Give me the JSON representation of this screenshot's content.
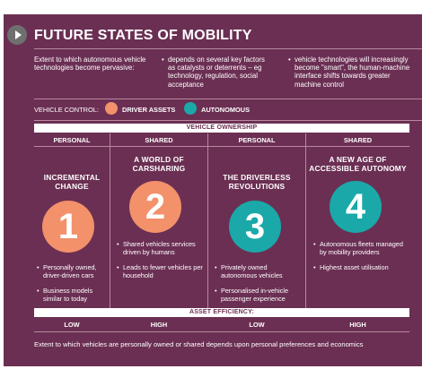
{
  "title": "FUTURE STATES OF MOBILITY",
  "intro": [
    "Extent to which autonomous vehicle technologies become pervasive:",
    "depends on several key factors as catalysts or deterrents – eg technology, regulation, social acceptance",
    "vehicle technologies will increasingly become \"smart\", the human-machine interface shifts towards greater machine control"
  ],
  "legend": {
    "label": "VEHICLE CONTROL:",
    "items": [
      {
        "label": "DRIVER ASSETS",
        "color": "#f2916a"
      },
      {
        "label": "AUTONOMOUS",
        "color": "#1aa8a8"
      }
    ]
  },
  "ownership_header": "VEHICLE OWNERSHIP",
  "columns": [
    {
      "head": "PERSONAL",
      "title": "INCREMENTAL CHANGE",
      "number": "1",
      "color": "orange",
      "bullets": [
        "Personally owned, driver-driven cars",
        "Business models similar to today"
      ],
      "efficiency": "LOW"
    },
    {
      "head": "SHARED",
      "title": "A WORLD OF CARSHARING",
      "number": "2",
      "color": "orange",
      "bullets": [
        "Shared vehicles services driven by humans",
        "Leads to fewer vehicles per household"
      ],
      "efficiency": "HIGH"
    },
    {
      "head": "PERSONAL",
      "title": "THE DRIVERLESS REVOLUTIONS",
      "number": "3",
      "color": "teal",
      "bullets": [
        "Privately owned autonomous vehicles",
        "Personalised in-vehicle passenger experience"
      ],
      "efficiency": "LOW"
    },
    {
      "head": "SHARED",
      "title": "A NEW AGE OF ACCESSIBLE AUTONOMY",
      "number": "4",
      "color": "teal",
      "bullets": [
        "Autonomous fleets managed by mobility providers",
        "Highest asset utilisation"
      ],
      "efficiency": "HIGH"
    }
  ],
  "efficiency_header": "ASSET EFFICIENCY:",
  "footer": "Extent to which vehicles are personally owned or shared depends upon personal preferences and economics"
}
